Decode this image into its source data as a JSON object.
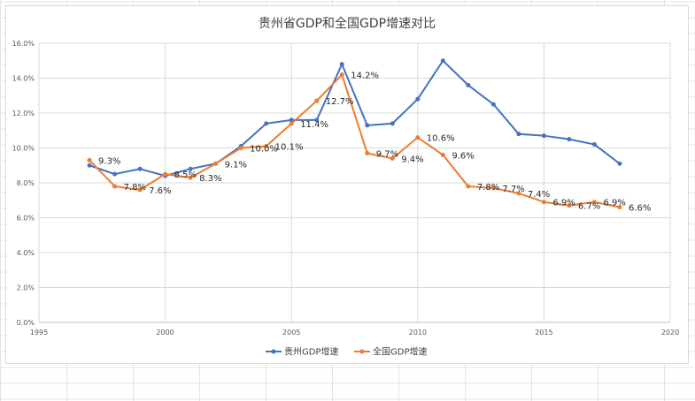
{
  "chart_data": {
    "type": "line",
    "title": "贵州省GDP和全国GDP增速对比",
    "xlabel": "",
    "ylabel": "",
    "xlim": [
      1995,
      2020
    ],
    "ylim": [
      0,
      16
    ],
    "x_ticks": [
      "1995",
      "2000",
      "2005",
      "2010",
      "2015",
      "2020"
    ],
    "y_ticks": [
      "0.0%",
      "2.0%",
      "4.0%",
      "6.0%",
      "8.0%",
      "10.0%",
      "12.0%",
      "14.0%",
      "16.0%"
    ],
    "grid": true,
    "legend_position": "bottom",
    "x": [
      1997,
      1998,
      1999,
      2000,
      2001,
      2002,
      2003,
      2004,
      2005,
      2006,
      2007,
      2008,
      2009,
      2010,
      2011,
      2012,
      2013,
      2014,
      2015,
      2016,
      2017,
      2018
    ],
    "series": [
      {
        "name": "贵州GDP增速",
        "color": "#4472C4",
        "values": [
          9.0,
          8.5,
          8.8,
          8.4,
          8.8,
          9.1,
          10.1,
          11.4,
          11.6,
          11.6,
          14.8,
          11.3,
          11.4,
          12.8,
          15.0,
          13.6,
          12.5,
          10.8,
          10.7,
          10.5,
          10.2,
          9.1
        ]
      },
      {
        "name": "全国GDP增速",
        "color": "#ED7D31",
        "values": [
          9.3,
          7.8,
          7.6,
          8.5,
          8.3,
          9.1,
          10.0,
          10.1,
          11.4,
          12.7,
          14.2,
          9.7,
          9.4,
          10.6,
          9.6,
          7.8,
          7.7,
          7.4,
          6.9,
          6.7,
          6.9,
          6.6
        ],
        "data_labels": [
          "9.3%",
          "7.8%",
          "7.6%",
          "8.5%",
          "8.3%",
          "9.1%",
          "10.0%",
          "10.1%",
          "11.4%",
          "12.7%",
          "14.2%",
          "9.7%",
          "9.4%",
          "10.6%",
          "9.6%",
          "7.8%",
          "7.7%",
          "7.4%",
          "6.9%",
          "6.7%",
          "6.9%",
          "6.6%"
        ]
      }
    ]
  }
}
